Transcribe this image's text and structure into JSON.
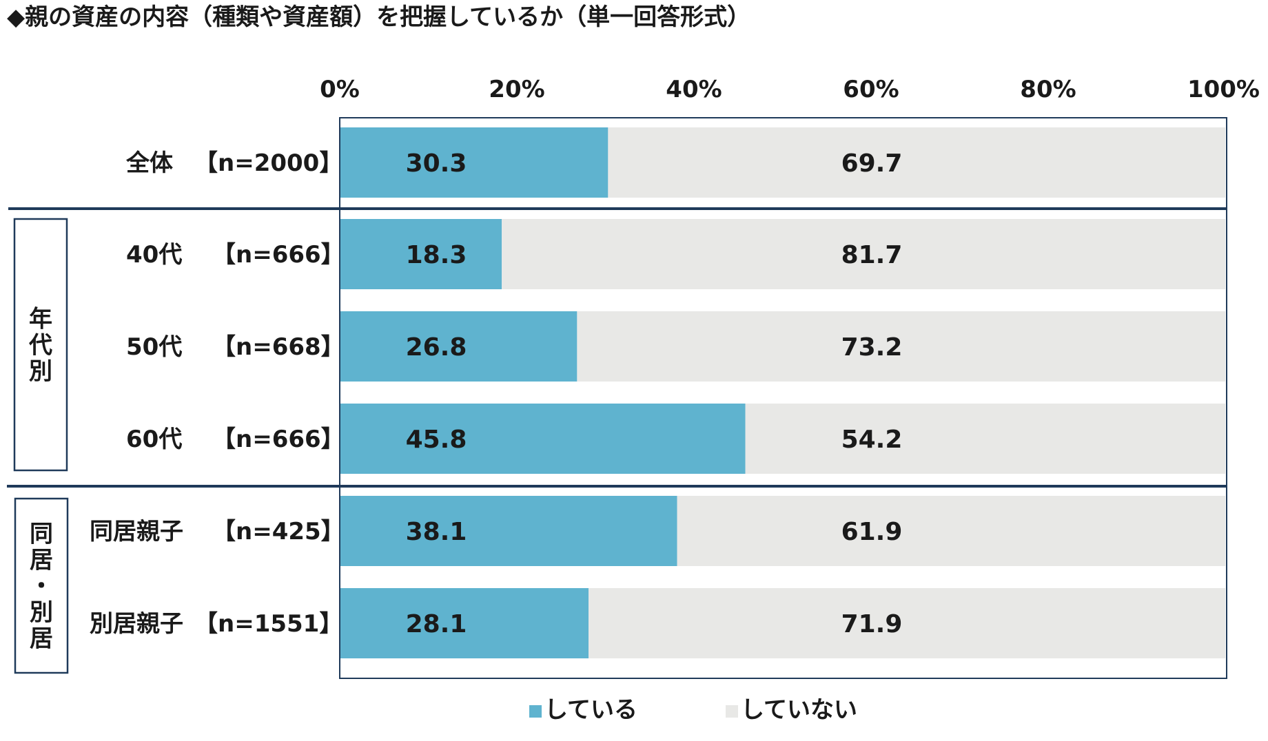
{
  "title": "◆親の資産の内容（種類や資産額）を把握しているか（単一回答形式）",
  "chart_data": {
    "type": "bar",
    "orientation": "horizontal",
    "stacked": true,
    "xlim": [
      0,
      100
    ],
    "x_ticks": [
      "0%",
      "20%",
      "40%",
      "60%",
      "80%",
      "100%"
    ],
    "categories": [
      "全体 【n=2000】",
      "40代 【n=666】",
      "50代 【n=668】",
      "60代 【n=666】",
      "同居親子 【n=425】",
      "別居親子【n=1551】"
    ],
    "row_labels": [
      {
        "name": "全体",
        "n": "【n=2000】"
      },
      {
        "name": "40代",
        "n": "【n=666】"
      },
      {
        "name": "50代",
        "n": "【n=668】"
      },
      {
        "name": "60代",
        "n": "【n=666】"
      },
      {
        "name": "同居親子",
        "n": "【n=425】"
      },
      {
        "name": "別居親子",
        "n": "【n=1551】"
      }
    ],
    "groups": [
      {
        "label": "年代別",
        "rows": [
          1,
          2,
          3
        ]
      },
      {
        "label": "同居・別居",
        "rows": [
          4,
          5
        ]
      }
    ],
    "series": [
      {
        "name": "している",
        "color": "#5fb3cf",
        "values": [
          30.3,
          18.3,
          26.8,
          45.8,
          38.1,
          28.1
        ]
      },
      {
        "name": "していない",
        "color": "#e8e8e6",
        "values": [
          69.7,
          81.7,
          73.2,
          54.2,
          61.9,
          71.9
        ]
      }
    ],
    "legend_position": "bottom",
    "frame_color": "#1f3a5a"
  }
}
